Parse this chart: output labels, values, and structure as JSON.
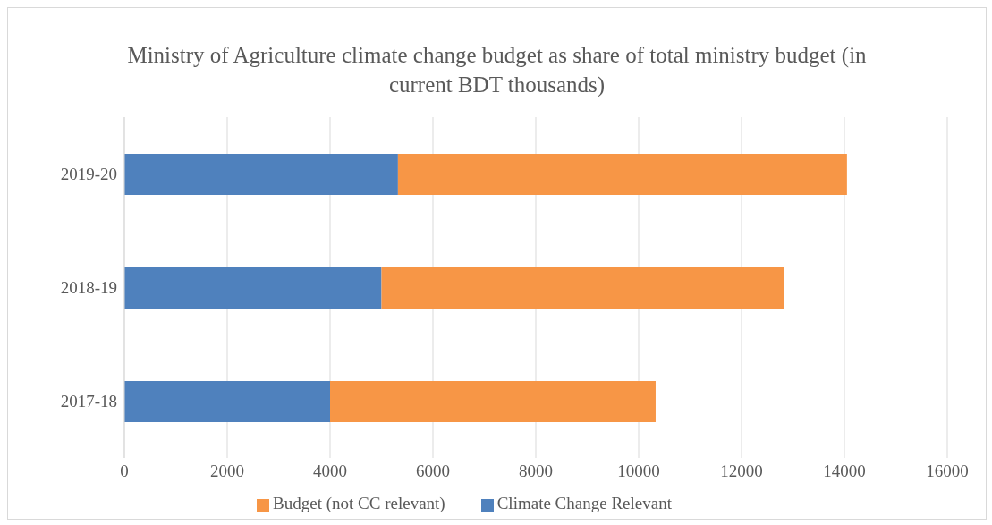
{
  "chart_data": {
    "type": "bar",
    "orientation": "horizontal",
    "stacked": true,
    "title": "Ministry of Agriculture climate change budget as share of total ministry budget (in current BDT thousands)",
    "categories": [
      "2019-20",
      "2018-19",
      "2017-18"
    ],
    "series": [
      {
        "name": "Climate Change Relevant",
        "color": "#4f81bd",
        "values": [
          5320,
          5000,
          4000
        ]
      },
      {
        "name": "Budget (not CC relevant)",
        "color": "#f79646",
        "values": [
          8730,
          7820,
          6330
        ]
      }
    ],
    "xlim": [
      0,
      16000
    ],
    "xticks": [
      0,
      2000,
      4000,
      6000,
      8000,
      10000,
      12000,
      14000,
      16000
    ],
    "grid": "x",
    "legend": "bottom"
  }
}
